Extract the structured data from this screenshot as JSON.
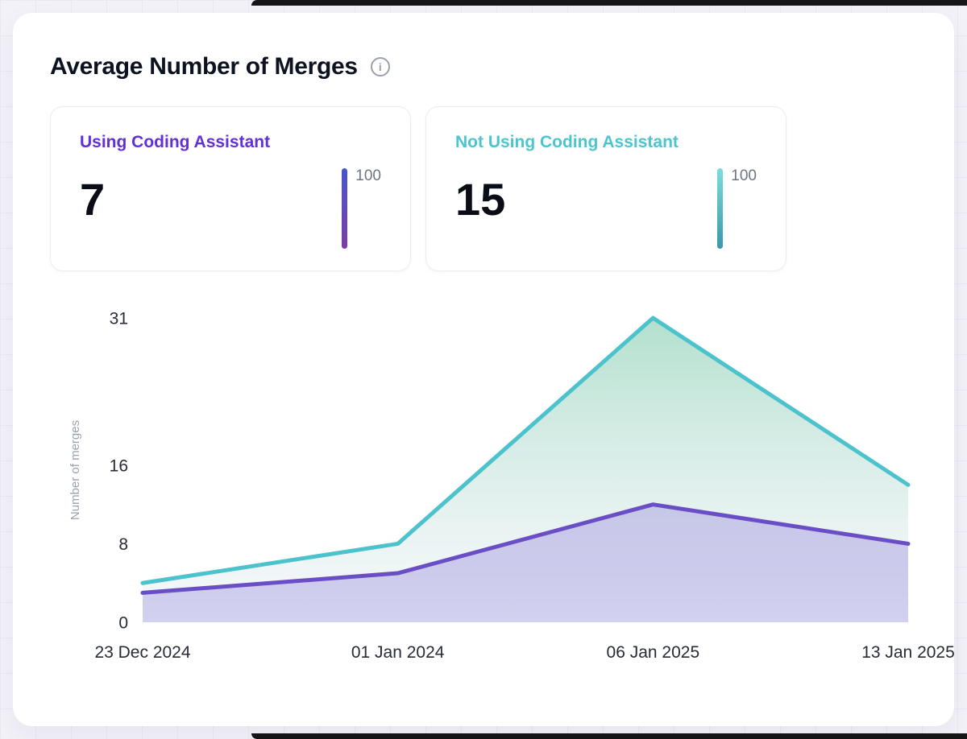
{
  "header": {
    "title": "Average Number of Merges",
    "info_icon": "i"
  },
  "stats": [
    {
      "label": "Using Coding Assistant",
      "value": "7",
      "scale_max": "100",
      "color": "#6231d6",
      "bar_top": "#4656cc",
      "bar_bottom": "#7c3da6"
    },
    {
      "label": "Not Using Coding Assistant",
      "value": "15",
      "scale_max": "100",
      "color": "#4cc5cf",
      "bar_top": "#7bdcdd",
      "bar_bottom": "#3a98a9"
    }
  ],
  "chart_data": {
    "type": "area",
    "title": "Average Number of Merges",
    "x": [
      "23 Dec 2024",
      "01 Jan 2024",
      "06 Jan 2025",
      "13 Jan 2025"
    ],
    "series": [
      {
        "name": "Using Coding Assistant",
        "color": "#6a4ec5",
        "fill_top": "#8f7ad8",
        "fill_top_opacity": 0.35,
        "fill_bottom": "#b4b1e6",
        "fill_bottom_opacity": 0.55,
        "values": [
          3,
          5,
          12,
          8
        ]
      },
      {
        "name": "Not Using Coding Assistant",
        "color": "#4cc2cd",
        "fill_top": "#9fd8c0",
        "fill_top_opacity": 0.8,
        "fill_bottom": "#e7edf5",
        "fill_bottom_opacity": 0.35,
        "values": [
          4,
          8,
          31,
          14
        ]
      }
    ],
    "xlabel": "",
    "ylabel": "Number of merges",
    "yticks": [
      0,
      8,
      16,
      31
    ],
    "ylim": [
      0,
      31
    ],
    "grid": false,
    "legend_position": "none"
  }
}
